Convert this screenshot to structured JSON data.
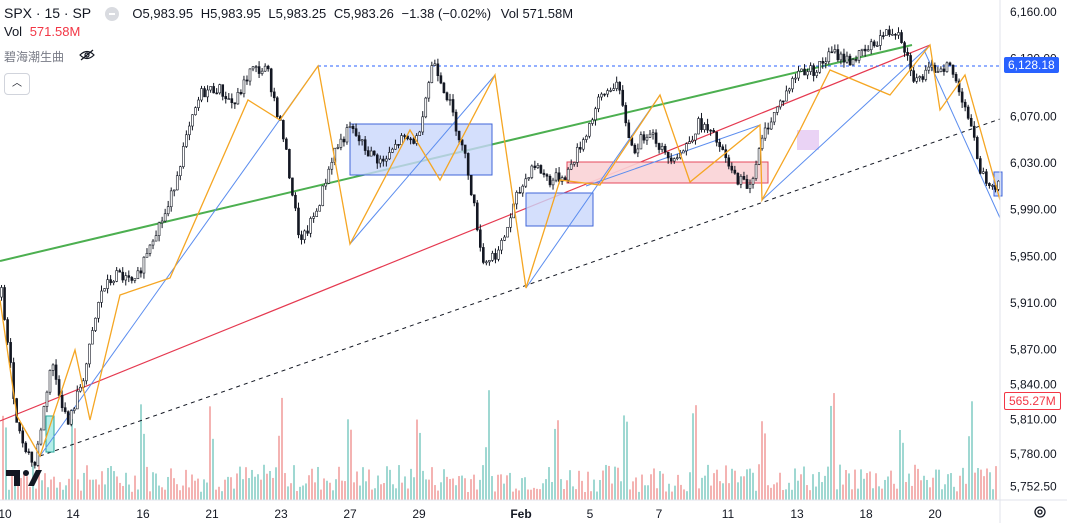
{
  "header": {
    "symbol": "SPX · 15 · SP",
    "open_label": "O",
    "open": "5,983.95",
    "high_label": "H",
    "high": "5,983.95",
    "low_label": "L",
    "low": "5,983.25",
    "close_label": "C",
    "close": "5,983.26",
    "change": "−1.38 (−0.02%)",
    "vol_label": "Vol",
    "vol": "571.58M"
  },
  "volume_legend": {
    "label": "Vol",
    "value": "571.58M"
  },
  "indicator_legend": {
    "label": "碧海潮生曲"
  },
  "last_price_tag": "6,128.18",
  "volume_tag": "565.27M",
  "colors": {
    "up": "#26a69a",
    "down": "#ef5350",
    "zigzag": "#f5a623",
    "trend_green": "#4caf50",
    "trend_red": "#e53950",
    "trend_blue": "#5b8def",
    "box_blue": "#c9d7fb",
    "box_red": "#f9d3d6",
    "tag_blue": "#2962ff",
    "tag_red": "#f23645"
  },
  "chart_data": {
    "type": "candlestick",
    "y_ticks": [
      "6,160.00",
      "6,120.00",
      "6,070.00",
      "6,030.00",
      "5,990.00",
      "5,950.00",
      "5,910.00",
      "5,870.00",
      "5,840.00",
      "5,810.00",
      "5,780.00",
      "5,752.50"
    ],
    "y_tick_values": [
      6160,
      6120,
      6070,
      6030,
      5990,
      5950,
      5910,
      5870,
      5840,
      5810,
      5780,
      5752.5
    ],
    "x_ticks": [
      "10",
      "14",
      "16",
      "21",
      "23",
      "27",
      "29",
      "Feb",
      "5",
      "7",
      "11",
      "13",
      "18",
      "20"
    ],
    "ylim": [
      5745,
      6168
    ],
    "price_path": [
      [
        5915,
        5920
      ],
      [
        5840,
        5800
      ],
      [
        5775,
        5770
      ],
      [
        5790,
        5860
      ],
      [
        5850,
        5805
      ],
      [
        5810,
        5850
      ],
      [
        5890,
        5920
      ],
      [
        5910,
        5935
      ],
      [
        5930,
        5925
      ],
      [
        5925,
        5965
      ],
      [
        5980,
        5990
      ],
      [
        6010,
        6045
      ],
      [
        6060,
        6090
      ],
      [
        6100,
        6095
      ],
      [
        6100,
        6080
      ],
      [
        6090,
        6110
      ],
      [
        6125,
        6110
      ],
      [
        6090,
        6050
      ],
      [
        5990,
        5960
      ],
      [
        5970,
        5990
      ],
      [
        6010,
        6040
      ],
      [
        6050,
        6060
      ],
      [
        6065,
        6040
      ],
      [
        6050,
        6030
      ],
      [
        6030,
        6050
      ],
      [
        6060,
        6050
      ],
      [
        6085,
        6120
      ],
      [
        6105,
        6080
      ],
      [
        6040,
        6030
      ],
      [
        6010,
        5945
      ],
      [
        5925,
        5955
      ],
      [
        5970,
        6000
      ],
      [
        6010,
        6030
      ],
      [
        6035,
        6015
      ],
      [
        6025,
        6020
      ],
      [
        6040,
        6050
      ],
      [
        6055,
        6085
      ],
      [
        6080,
        6100
      ],
      [
        6060,
        6040
      ],
      [
        6050,
        6060
      ],
      [
        6045,
        6035
      ],
      [
        6040,
        6040
      ],
      [
        6055,
        6065
      ],
      [
        6045,
        6050
      ],
      [
        6040,
        6020
      ],
      [
        6000,
        6010
      ],
      [
        6050,
        6060
      ],
      [
        6080,
        6085
      ],
      [
        6100,
        6110
      ],
      [
        6120,
        6110
      ],
      [
        6115,
        6125
      ],
      [
        6125,
        6118
      ],
      [
        6115,
        6125
      ],
      [
        6130,
        6140
      ],
      [
        6140,
        6145
      ],
      [
        6140,
        6100
      ],
      [
        6090,
        6110
      ],
      [
        6100,
        6115
      ],
      [
        6100,
        6080
      ],
      [
        6060,
        6020
      ],
      [
        6005,
        6010
      ]
    ],
    "volume_legend": "Vol",
    "last_price": 6128.18
  }
}
